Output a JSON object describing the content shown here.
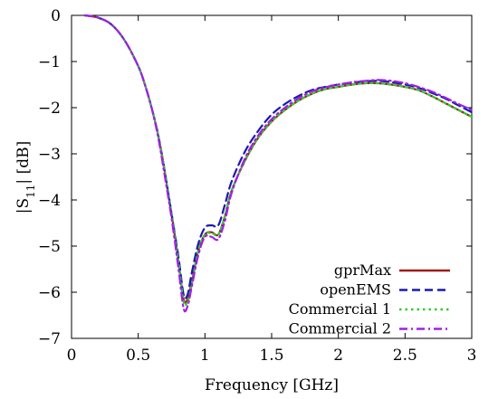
{
  "chart_data": {
    "type": "line",
    "xlabel": "Frequency [GHz]",
    "ylabel_main": "|S",
    "ylabel_sub": "11",
    "ylabel_tail": "| [dB]",
    "xlim": [
      0,
      3
    ],
    "ylim": [
      -7,
      0
    ],
    "xticks": [
      0,
      0.5,
      1,
      1.5,
      2,
      2.5,
      3
    ],
    "xtick_labels": [
      "0",
      "0.5",
      "1",
      "1.5",
      "2",
      "2.5",
      "3"
    ],
    "yticks": [
      0,
      -1,
      -2,
      -3,
      -4,
      -5,
      -6,
      -7
    ],
    "ytick_labels": [
      "0",
      "−1",
      "−2",
      "−3",
      "−4",
      "−5",
      "−6",
      "−7"
    ],
    "grid": false,
    "legend_position": "bottom-right",
    "series": [
      {
        "name": "gprMax",
        "color": "#a01b18",
        "dash": "solid",
        "points": [
          [
            0.1,
            0.0
          ],
          [
            0.2,
            -0.05
          ],
          [
            0.3,
            -0.2
          ],
          [
            0.4,
            -0.55
          ],
          [
            0.5,
            -1.1
          ],
          [
            0.55,
            -1.5
          ],
          [
            0.6,
            -2.0
          ],
          [
            0.65,
            -2.6
          ],
          [
            0.7,
            -3.4
          ],
          [
            0.75,
            -4.3
          ],
          [
            0.8,
            -5.3
          ],
          [
            0.84,
            -6.15
          ],
          [
            0.87,
            -6.15
          ],
          [
            0.9,
            -5.8
          ],
          [
            0.95,
            -5.1
          ],
          [
            1.0,
            -4.75
          ],
          [
            1.05,
            -4.7
          ],
          [
            1.1,
            -4.75
          ],
          [
            1.15,
            -4.35
          ],
          [
            1.2,
            -3.8
          ],
          [
            1.3,
            -3.15
          ],
          [
            1.4,
            -2.65
          ],
          [
            1.5,
            -2.3
          ],
          [
            1.6,
            -2.05
          ],
          [
            1.7,
            -1.85
          ],
          [
            1.8,
            -1.7
          ],
          [
            1.9,
            -1.6
          ],
          [
            2.0,
            -1.55
          ],
          [
            2.1,
            -1.5
          ],
          [
            2.2,
            -1.47
          ],
          [
            2.3,
            -1.47
          ],
          [
            2.4,
            -1.5
          ],
          [
            2.5,
            -1.55
          ],
          [
            2.6,
            -1.62
          ],
          [
            2.7,
            -1.75
          ],
          [
            2.8,
            -1.9
          ],
          [
            2.9,
            -2.05
          ],
          [
            3.0,
            -2.2
          ]
        ]
      },
      {
        "name": "openEMS",
        "color": "#1a1ab0",
        "dash": "dashed",
        "points": [
          [
            0.1,
            0.0
          ],
          [
            0.2,
            -0.05
          ],
          [
            0.3,
            -0.2
          ],
          [
            0.4,
            -0.55
          ],
          [
            0.5,
            -1.1
          ],
          [
            0.55,
            -1.5
          ],
          [
            0.6,
            -2.0
          ],
          [
            0.65,
            -2.6
          ],
          [
            0.7,
            -3.4
          ],
          [
            0.75,
            -4.3
          ],
          [
            0.8,
            -5.2
          ],
          [
            0.84,
            -6.05
          ],
          [
            0.87,
            -6.05
          ],
          [
            0.9,
            -5.6
          ],
          [
            0.95,
            -4.95
          ],
          [
            1.0,
            -4.6
          ],
          [
            1.05,
            -4.55
          ],
          [
            1.1,
            -4.55
          ],
          [
            1.15,
            -4.1
          ],
          [
            1.2,
            -3.6
          ],
          [
            1.3,
            -2.95
          ],
          [
            1.4,
            -2.5
          ],
          [
            1.5,
            -2.15
          ],
          [
            1.6,
            -1.92
          ],
          [
            1.7,
            -1.75
          ],
          [
            1.8,
            -1.62
          ],
          [
            1.9,
            -1.55
          ],
          [
            2.0,
            -1.5
          ],
          [
            2.1,
            -1.46
          ],
          [
            2.2,
            -1.43
          ],
          [
            2.3,
            -1.42
          ],
          [
            2.4,
            -1.45
          ],
          [
            2.5,
            -1.5
          ],
          [
            2.6,
            -1.57
          ],
          [
            2.7,
            -1.68
          ],
          [
            2.8,
            -1.8
          ],
          [
            2.9,
            -1.95
          ],
          [
            3.0,
            -2.1
          ]
        ]
      },
      {
        "name": "Commercial 1",
        "color": "#2ccf2c",
        "dash": "dotted",
        "points": [
          [
            0.1,
            0.0
          ],
          [
            0.2,
            -0.05
          ],
          [
            0.3,
            -0.2
          ],
          [
            0.4,
            -0.55
          ],
          [
            0.5,
            -1.1
          ],
          [
            0.55,
            -1.5
          ],
          [
            0.6,
            -2.0
          ],
          [
            0.65,
            -2.6
          ],
          [
            0.7,
            -3.4
          ],
          [
            0.75,
            -4.3
          ],
          [
            0.8,
            -5.3
          ],
          [
            0.84,
            -6.2
          ],
          [
            0.87,
            -6.2
          ],
          [
            0.9,
            -5.85
          ],
          [
            0.95,
            -5.1
          ],
          [
            1.0,
            -4.75
          ],
          [
            1.05,
            -4.72
          ],
          [
            1.1,
            -4.75
          ],
          [
            1.15,
            -4.35
          ],
          [
            1.2,
            -3.8
          ],
          [
            1.3,
            -3.15
          ],
          [
            1.4,
            -2.65
          ],
          [
            1.5,
            -2.3
          ],
          [
            1.6,
            -2.05
          ],
          [
            1.7,
            -1.85
          ],
          [
            1.8,
            -1.7
          ],
          [
            1.9,
            -1.6
          ],
          [
            2.0,
            -1.55
          ],
          [
            2.1,
            -1.5
          ],
          [
            2.2,
            -1.47
          ],
          [
            2.3,
            -1.47
          ],
          [
            2.4,
            -1.5
          ],
          [
            2.5,
            -1.55
          ],
          [
            2.6,
            -1.62
          ],
          [
            2.7,
            -1.75
          ],
          [
            2.8,
            -1.9
          ],
          [
            2.9,
            -2.05
          ],
          [
            3.0,
            -2.2
          ]
        ]
      },
      {
        "name": "Commercial 2",
        "color": "#a020e8",
        "dash": "dashdot",
        "points": [
          [
            0.1,
            0.0
          ],
          [
            0.2,
            -0.05
          ],
          [
            0.3,
            -0.2
          ],
          [
            0.4,
            -0.55
          ],
          [
            0.5,
            -1.1
          ],
          [
            0.55,
            -1.5
          ],
          [
            0.6,
            -2.0
          ],
          [
            0.65,
            -2.65
          ],
          [
            0.7,
            -3.5
          ],
          [
            0.75,
            -4.4
          ],
          [
            0.8,
            -5.45
          ],
          [
            0.84,
            -6.35
          ],
          [
            0.87,
            -6.3
          ],
          [
            0.9,
            -5.9
          ],
          [
            0.95,
            -5.2
          ],
          [
            1.0,
            -4.8
          ],
          [
            1.05,
            -4.8
          ],
          [
            1.1,
            -4.85
          ],
          [
            1.15,
            -4.45
          ],
          [
            1.2,
            -3.85
          ],
          [
            1.3,
            -3.1
          ],
          [
            1.4,
            -2.6
          ],
          [
            1.5,
            -2.25
          ],
          [
            1.6,
            -2.0
          ],
          [
            1.7,
            -1.8
          ],
          [
            1.8,
            -1.65
          ],
          [
            1.9,
            -1.56
          ],
          [
            2.0,
            -1.5
          ],
          [
            2.1,
            -1.45
          ],
          [
            2.2,
            -1.42
          ],
          [
            2.3,
            -1.4
          ],
          [
            2.4,
            -1.42
          ],
          [
            2.5,
            -1.47
          ],
          [
            2.6,
            -1.55
          ],
          [
            2.7,
            -1.65
          ],
          [
            2.8,
            -1.78
          ],
          [
            2.9,
            -1.92
          ],
          [
            3.0,
            -2.05
          ]
        ]
      }
    ]
  }
}
